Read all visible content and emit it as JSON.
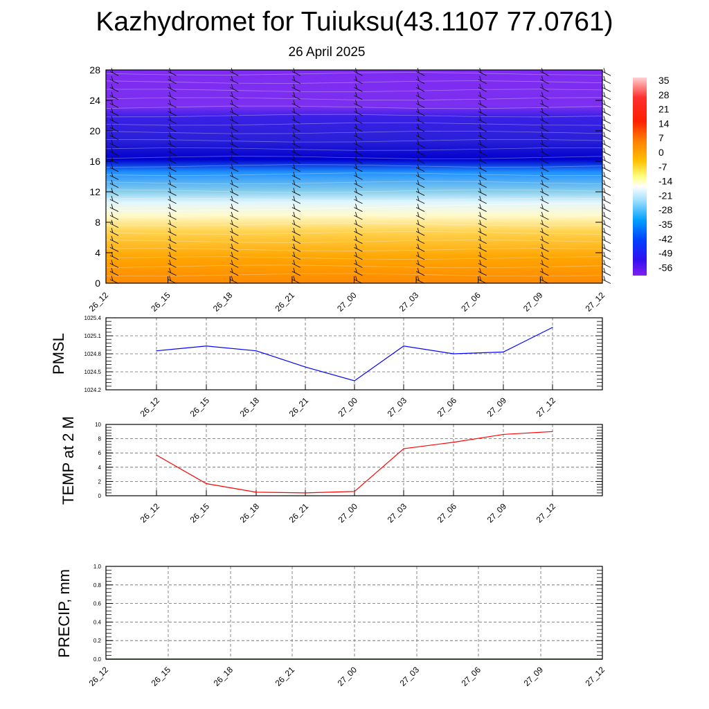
{
  "title": "Kazhydromet for Tuiuksu(43.1107 77.0761)",
  "subtitle": "26 April 2025",
  "chart_data": [
    {
      "id": "cross-section",
      "type": "heatmap",
      "description_values": "temperature vs height with wind barbs",
      "x_ticks": [
        "26_12",
        "26_15",
        "26_18",
        "26_21",
        "27_00",
        "27_03",
        "27_06",
        "27_09",
        "27_12"
      ],
      "y_ticks": [
        0,
        4,
        8,
        12,
        16,
        20,
        24,
        28
      ],
      "ylim": [
        0,
        28
      ],
      "freezing_level_km": [
        9.5,
        9.5,
        9.6,
        9.7,
        9.9,
        10.1,
        10.3,
        10.4,
        10.4
      ],
      "colorbar": {
        "labels": [
          "35",
          "28",
          "21",
          "14",
          "7",
          "0",
          "-7",
          "-14",
          "-21",
          "-28",
          "-35",
          "-42",
          "-49",
          "-56"
        ],
        "range": [
          -60,
          38
        ]
      },
      "colors": [
        "#ff8c00",
        "#ffa500",
        "#ffd24d",
        "#fffacd",
        "#e0f6ff",
        "#87ceeb",
        "#1e90ff",
        "#0000cd",
        "#3a1fe6",
        "#7b2ff0"
      ]
    },
    {
      "id": "pmsl",
      "type": "line",
      "ylabel": "PMSL",
      "x": [
        "26_12",
        "26_15",
        "26_18",
        "26_21",
        "27_00",
        "27_03",
        "27_06",
        "27_09",
        "27_12"
      ],
      "values": [
        1024.85,
        1024.93,
        1024.85,
        1024.58,
        1024.35,
        1024.93,
        1024.8,
        1024.83,
        1025.24
      ],
      "y_ticks": [
        "1024.2",
        "1024.5",
        "1024.8",
        "1025.1",
        "1025.4"
      ],
      "ylim": [
        1024.2,
        1025.4
      ],
      "grid": true,
      "color": "#0000ff"
    },
    {
      "id": "temp2m",
      "type": "line",
      "ylabel": "TEMP at 2 M",
      "x": [
        "26_12",
        "26_15",
        "26_18",
        "26_21",
        "27_00",
        "27_03",
        "27_06",
        "27_09",
        "27_12"
      ],
      "values": [
        5.7,
        1.7,
        0.5,
        0.4,
        0.6,
        6.6,
        7.5,
        8.6,
        9.0
      ],
      "y_ticks": [
        "0",
        "2",
        "4",
        "6",
        "8",
        "10"
      ],
      "ylim": [
        0,
        10
      ],
      "grid": true,
      "color": "#ff0000"
    },
    {
      "id": "precip",
      "type": "line",
      "ylabel": "PRECIP, mm",
      "x": [
        "26_12",
        "26_15",
        "26_18",
        "26_21",
        "27_00",
        "27_03",
        "27_06",
        "27_09",
        "27_12"
      ],
      "values": [
        0,
        0,
        0,
        0,
        0,
        0,
        0,
        0,
        0
      ],
      "y_ticks": [
        "0.0",
        "0.2",
        "0.4",
        "0.6",
        "0.8",
        "1.0"
      ],
      "ylim": [
        0,
        1
      ],
      "grid": true,
      "color": "#006400"
    }
  ]
}
